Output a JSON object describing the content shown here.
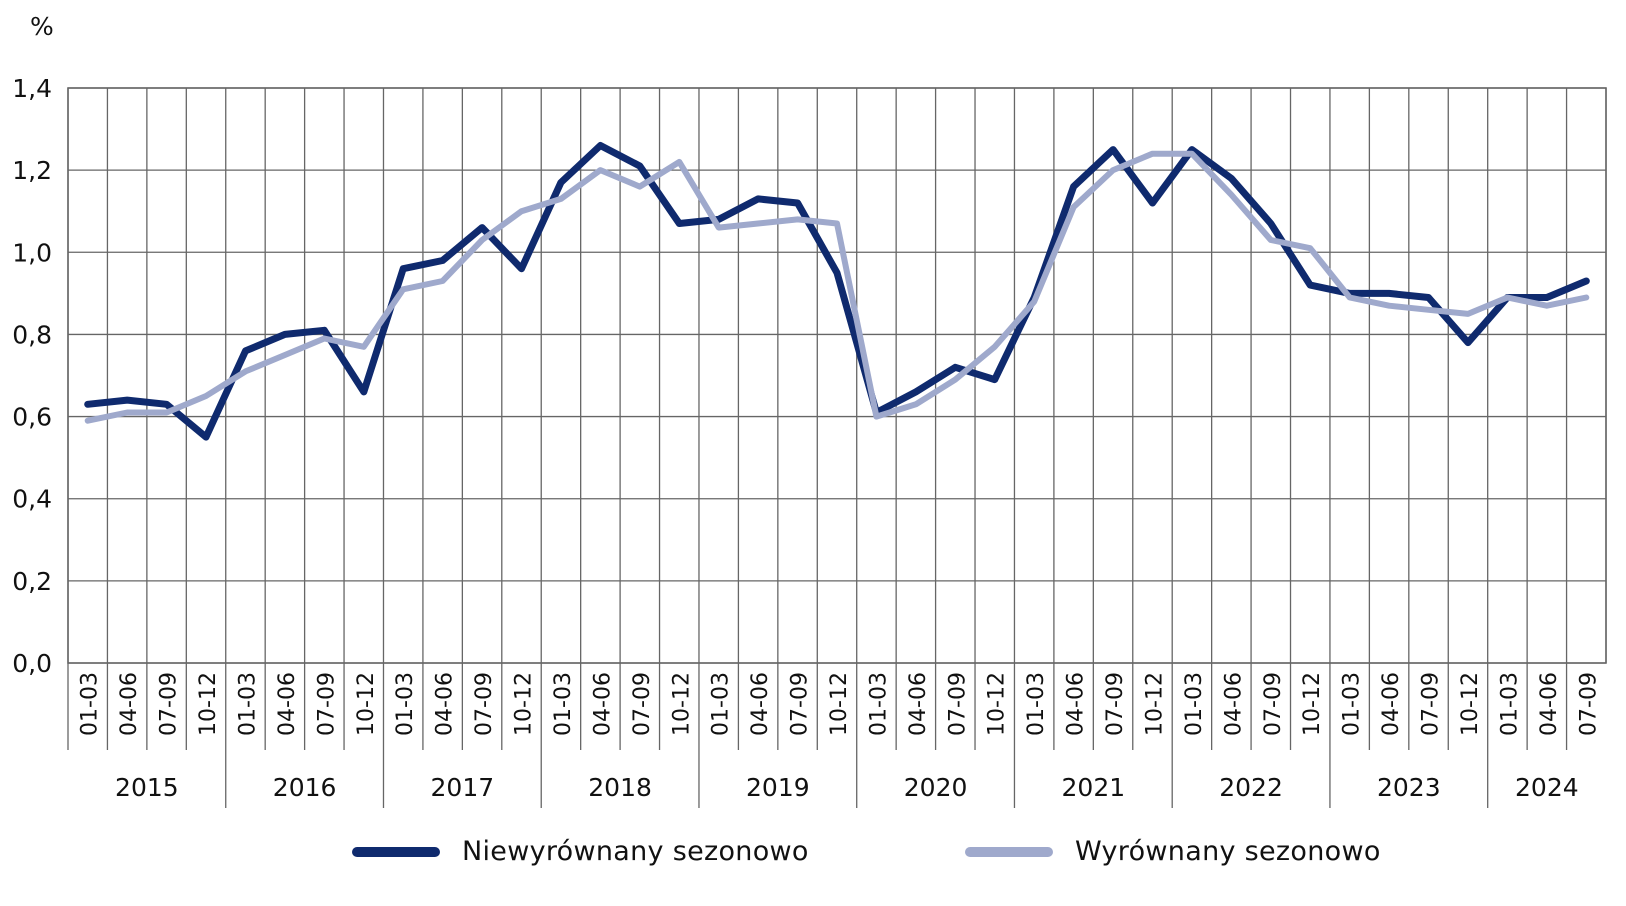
{
  "chart_data": {
    "type": "line",
    "title": "",
    "ylabel": "%",
    "xlabel": "",
    "ylim": [
      0,
      1.4
    ],
    "yticks": [
      "0,0",
      "0,2",
      "0,4",
      "0,6",
      "0,8",
      "1,0",
      "1,2",
      "1,4"
    ],
    "grid": true,
    "legend_placement": "bottom",
    "categories": [
      "01-03",
      "04-06",
      "07-09",
      "10-12",
      "01-03",
      "04-06",
      "07-09",
      "10-12",
      "01-03",
      "04-06",
      "07-09",
      "10-12",
      "01-03",
      "04-06",
      "07-09",
      "10-12",
      "01-03",
      "04-06",
      "07-09",
      "10-12",
      "01-03",
      "04-06",
      "07-09",
      "10-12",
      "01-03",
      "04-06",
      "07-09",
      "10-12",
      "01-03",
      "04-06",
      "07-09",
      "10-12",
      "01-03",
      "04-06",
      "07-09",
      "10-12",
      "01-03",
      "04-06",
      "07-09"
    ],
    "years": [
      {
        "label": "2015",
        "quarters": 4
      },
      {
        "label": "2016",
        "quarters": 4
      },
      {
        "label": "2017",
        "quarters": 4
      },
      {
        "label": "2018",
        "quarters": 4
      },
      {
        "label": "2019",
        "quarters": 4
      },
      {
        "label": "2020",
        "quarters": 4
      },
      {
        "label": "2021",
        "quarters": 4
      },
      {
        "label": "2022",
        "quarters": 4
      },
      {
        "label": "2023",
        "quarters": 4
      },
      {
        "label": "2024",
        "quarters": 3
      }
    ],
    "series": [
      {
        "name": "Niewyrównany sezonowo",
        "color": "#0f2a6e",
        "values": [
          0.63,
          0.64,
          0.63,
          0.55,
          0.76,
          0.8,
          0.81,
          0.66,
          0.96,
          0.98,
          1.06,
          0.96,
          1.17,
          1.26,
          1.21,
          1.07,
          1.08,
          1.13,
          1.12,
          0.95,
          0.61,
          0.66,
          0.72,
          0.69,
          0.89,
          1.16,
          1.25,
          1.12,
          1.25,
          1.18,
          1.07,
          0.92,
          0.9,
          0.9,
          0.89,
          0.78,
          0.89,
          0.89,
          0.93
        ]
      },
      {
        "name": "Wyrównany sezonowo",
        "color": "#9fa9cc",
        "values": [
          0.59,
          0.61,
          0.61,
          0.65,
          0.71,
          0.75,
          0.79,
          0.77,
          0.91,
          0.93,
          1.03,
          1.1,
          1.13,
          1.2,
          1.16,
          1.22,
          1.06,
          1.07,
          1.08,
          1.07,
          0.6,
          0.63,
          0.69,
          0.77,
          0.88,
          1.11,
          1.2,
          1.24,
          1.24,
          1.14,
          1.03,
          1.01,
          0.89,
          0.87,
          0.86,
          0.85,
          0.89,
          0.87,
          0.89
        ]
      }
    ]
  }
}
